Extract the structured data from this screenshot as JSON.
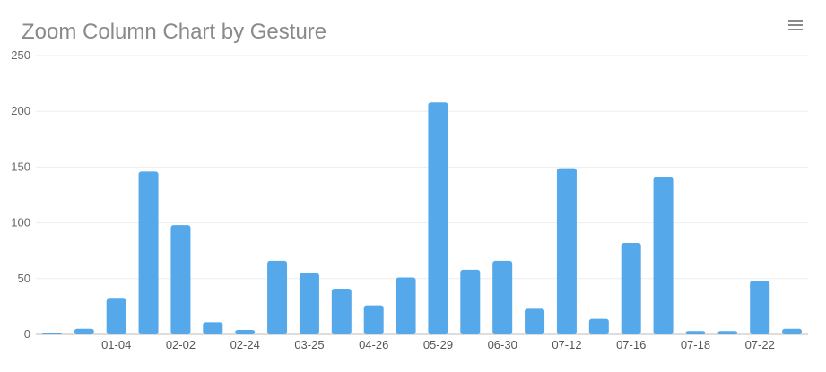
{
  "title": "Zoom Column Chart by Gesture",
  "menu_icon": "hamburger-menu-icon",
  "colors": {
    "bar": "#55a8ea",
    "grid": "#eeeeee",
    "axis": "#bbbbbb"
  },
  "chart_data": {
    "type": "bar",
    "title": "Zoom Column Chart by Gesture",
    "xlabel": "",
    "ylabel": "",
    "ylim": [
      0,
      250
    ],
    "yticks": [
      0,
      50,
      100,
      150,
      200,
      250
    ],
    "grid": true,
    "categories": [
      "",
      "",
      "01-04",
      "",
      "02-02",
      "",
      "02-24",
      "",
      "03-25",
      "",
      "04-26",
      "",
      "05-29",
      "",
      "06-30",
      "",
      "07-12",
      "",
      "07-16",
      "",
      "07-18",
      "",
      "07-22",
      ""
    ],
    "values": [
      1,
      5,
      32,
      146,
      98,
      11,
      4,
      66,
      55,
      41,
      26,
      51,
      208,
      58,
      66,
      23,
      149,
      14,
      82,
      141,
      3,
      3,
      48,
      5
    ]
  }
}
